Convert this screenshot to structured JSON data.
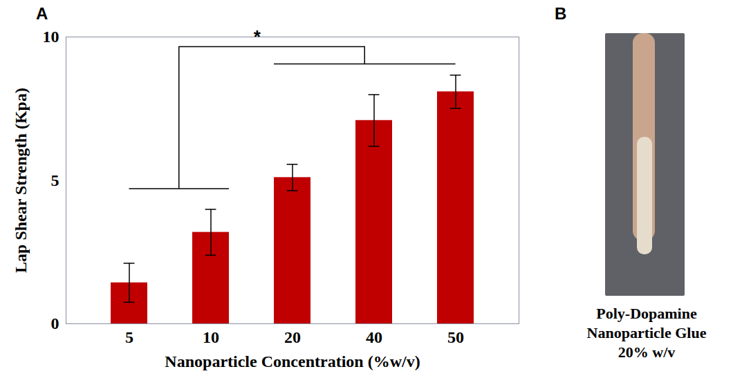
{
  "chart_data": {
    "type": "bar",
    "panel": "A",
    "x_label": "Nanoparticle Concentration (%w/v)",
    "y_label": "Lap Shear Strength (Kpa)",
    "categories": [
      "5",
      "10",
      "20",
      "40",
      "50"
    ],
    "values": [
      1.43,
      3.19,
      5.1,
      7.09,
      8.09
    ],
    "errors": [
      0.68,
      0.8,
      0.46,
      0.9,
      0.58
    ],
    "color": "#c00000",
    "ylim": [
      0,
      10
    ],
    "yticks": [
      0,
      5,
      10
    ],
    "grid": false,
    "annotations": [
      {
        "text": "*",
        "groups": [
          [
            "5",
            "10"
          ],
          [
            "20",
            "40",
            "50"
          ]
        ]
      }
    ]
  },
  "photo_panel": {
    "panel": "B",
    "caption": [
      "Poly-Dopamine",
      "Nanoparticle Glue",
      "20% w/v"
    ]
  }
}
